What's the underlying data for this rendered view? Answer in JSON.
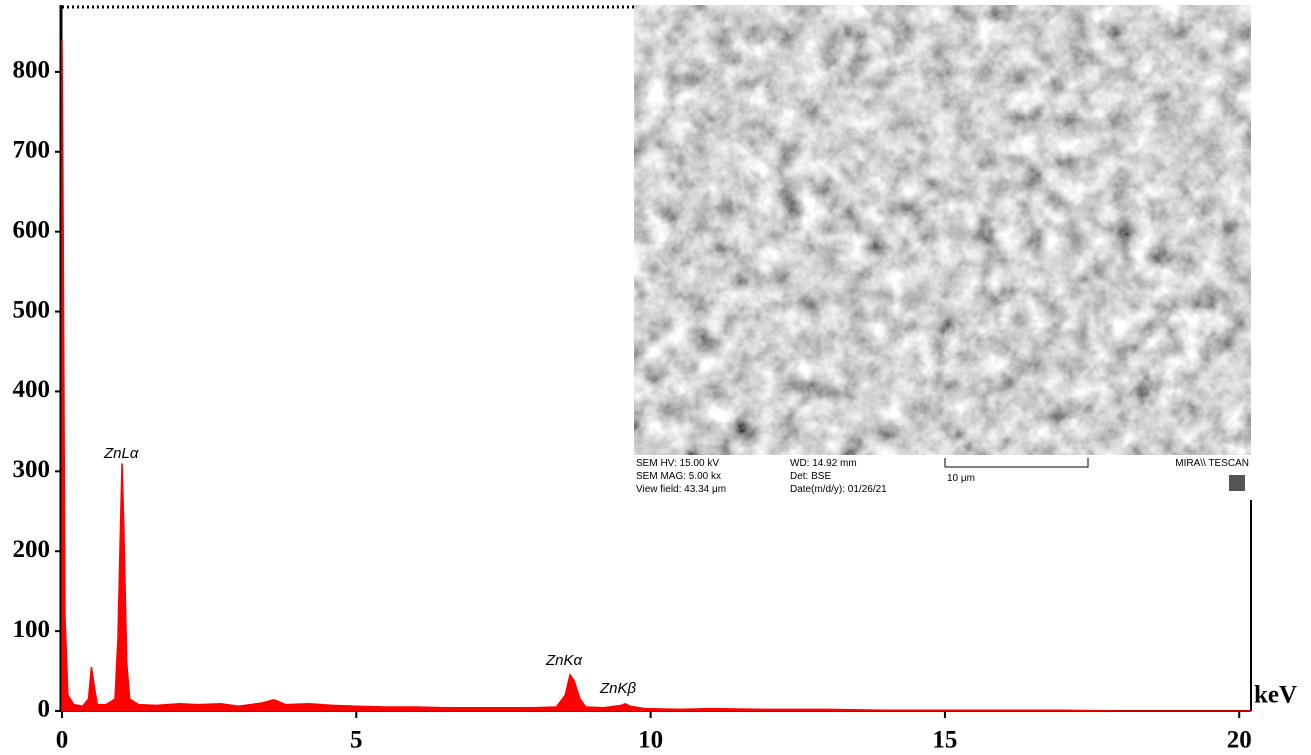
{
  "chart_data": {
    "type": "area",
    "x": [
      0,
      0.02,
      0.05,
      0.1,
      0.2,
      0.35,
      0.45,
      0.5,
      0.55,
      0.6,
      0.75,
      0.9,
      0.95,
      1.0,
      1.02,
      1.05,
      1.1,
      1.15,
      1.3,
      1.6,
      2.0,
      2.3,
      2.7,
      3.0,
      3.4,
      3.6,
      3.8,
      4.2,
      4.6,
      5.0,
      5.5,
      6.0,
      6.5,
      7.0,
      7.5,
      8.0,
      8.4,
      8.55,
      8.63,
      8.7,
      8.8,
      8.9,
      9.2,
      9.5,
      9.57,
      9.65,
      9.9,
      10.5,
      11,
      12,
      13,
      14,
      15,
      16,
      17,
      18,
      19,
      20,
      20.2
    ],
    "values": [
      840,
      600,
      120,
      20,
      8,
      6,
      15,
      55,
      30,
      8,
      8,
      15,
      90,
      250,
      310,
      230,
      60,
      15,
      8,
      7,
      9,
      8,
      9,
      6,
      10,
      14,
      8,
      9,
      7,
      6,
      5,
      5,
      4,
      4,
      4,
      4,
      5,
      20,
      45,
      38,
      15,
      5,
      4,
      7,
      9,
      6,
      3,
      2,
      3,
      2,
      2,
      1,
      1,
      1,
      1,
      0,
      0,
      0,
      0
    ],
    "color": "#ff0000",
    "xlim": [
      0,
      20.2
    ],
    "xticks": [
      0,
      5,
      10,
      15,
      20
    ],
    "ylim": [
      0,
      880
    ],
    "yticks": [
      0,
      100,
      200,
      300,
      400,
      500,
      600,
      700,
      800
    ],
    "x_label": "keV",
    "annotations": [
      "ZnLα",
      "ZnKα",
      "ZnKβ"
    ]
  },
  "inset": {
    "labels": [
      "SEM HV: 15.00 kV",
      "WD: 14.92 mm",
      "MIRA\\\\ TESCAN",
      "SEM MAG: 5.00 kx",
      "Det: BSE",
      "10 μm",
      "View field: 43.34 μm",
      "Date(m/d/y): 01/26/21"
    ]
  }
}
